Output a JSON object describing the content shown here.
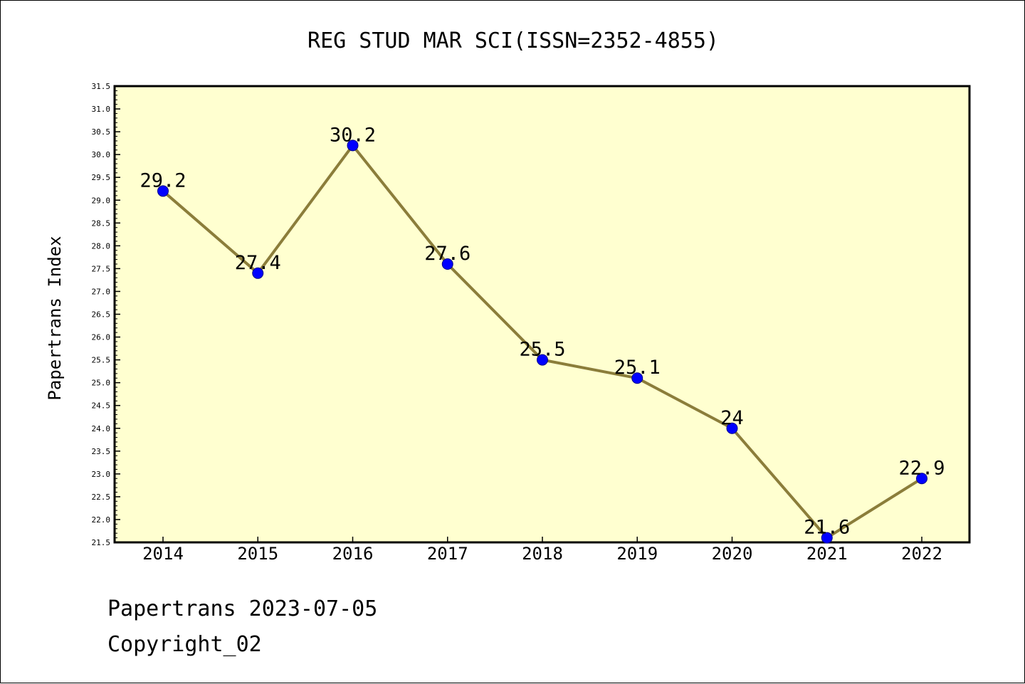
{
  "chart_data": {
    "type": "line",
    "title": "REG STUD MAR SCI(ISSN=2352-4855)",
    "xlabel": "",
    "ylabel": "Papertrans Index",
    "x": [
      "2014",
      "2015",
      "2016",
      "2017",
      "2018",
      "2019",
      "2020",
      "2021",
      "2022"
    ],
    "series": [
      {
        "values": [
          29.2,
          27.4,
          30.2,
          27.6,
          25.5,
          25.1,
          24,
          21.6,
          22.9
        ],
        "data_labels": [
          "29.2",
          "27.4",
          "30.2",
          "27.6",
          "25.5",
          "25.1",
          "24",
          "21.6",
          "22.9"
        ]
      }
    ],
    "ylim": [
      21.5,
      31.5
    ],
    "yticks": [
      "21.5",
      "22.0",
      "22.5",
      "23.0",
      "23.5",
      "24.0",
      "24.5",
      "25.0",
      "25.5",
      "26.0",
      "26.5",
      "27.0",
      "27.5",
      "28.0",
      "28.5",
      "29.0",
      "29.5",
      "30.0",
      "30.5",
      "31.0",
      "31.5"
    ],
    "grid": false,
    "colors": {
      "plot_background": "#ffffd0",
      "line": "#8b7d3a",
      "marker": "#0000ff"
    }
  },
  "footer": {
    "line1": "Papertrans 2023-07-05",
    "line2": "Copyright_02"
  }
}
